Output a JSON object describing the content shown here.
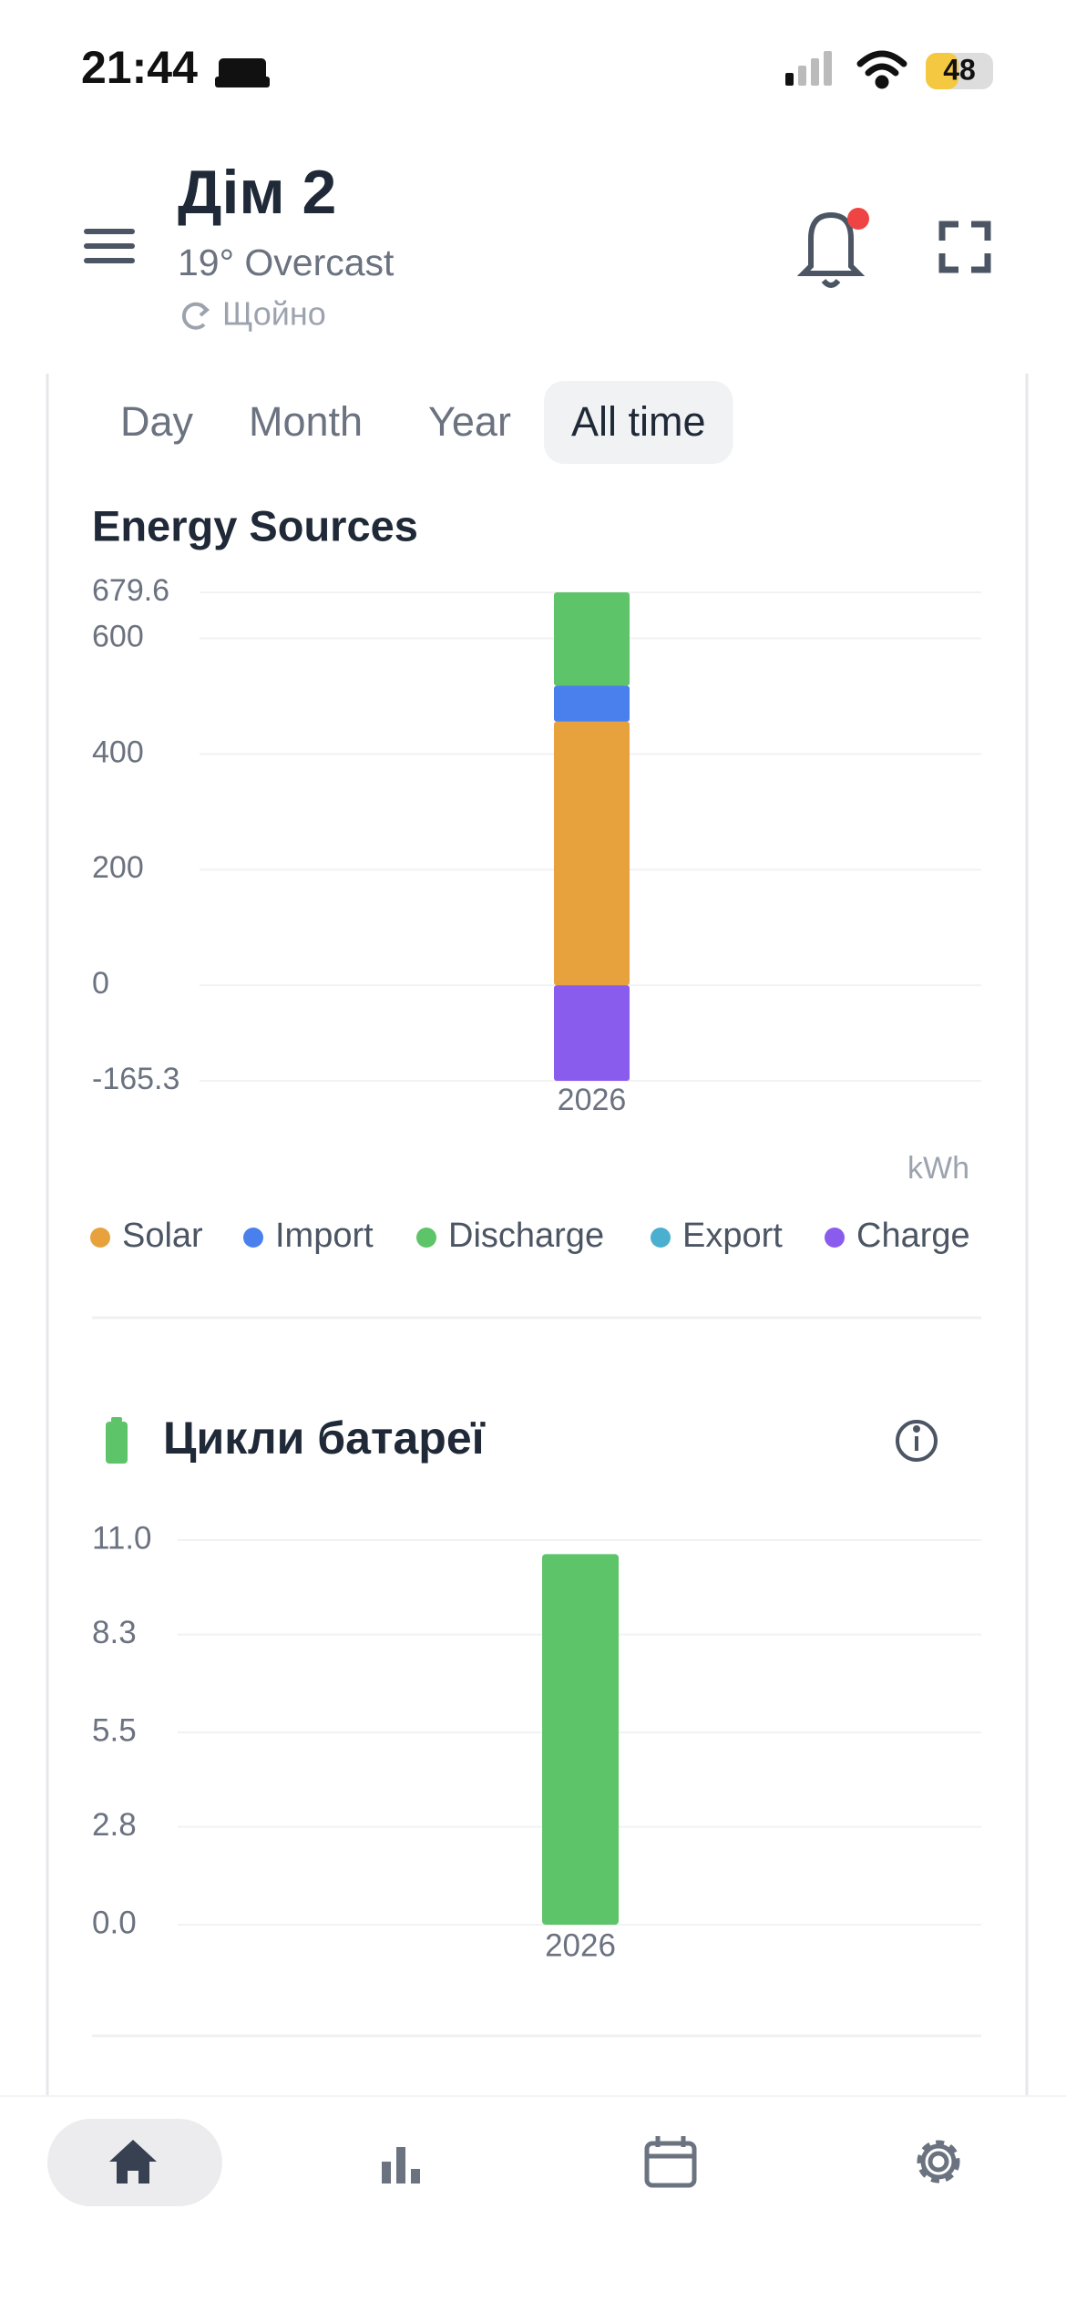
{
  "status_bar": {
    "time": "21:44",
    "battery": "48"
  },
  "header": {
    "title": "Дім 2",
    "subtitle": "19° Overcast",
    "updated": "Щойно"
  },
  "tabs": {
    "items": [
      "Day",
      "Month",
      "Year",
      "All time"
    ],
    "active": 3
  },
  "chart_data": [
    {
      "type": "bar",
      "title": "Energy Sources",
      "unit": "kWh",
      "categories": [
        "2026"
      ],
      "series": [
        {
          "name": "Solar",
          "color": "#e8a23d",
          "values": [
            456
          ]
        },
        {
          "name": "Import",
          "color": "#4a80ee",
          "values": [
            62
          ]
        },
        {
          "name": "Discharge",
          "color": "#5ec46a",
          "values": [
            161.6
          ]
        },
        {
          "name": "Export",
          "color": "#4bb0d0",
          "values": [
            0
          ]
        },
        {
          "name": "Charge",
          "color": "#8a5cee",
          "values": [
            -165.3
          ]
        }
      ],
      "ylim": [
        -165.3,
        679.6
      ],
      "yticks": [
        679.6,
        600,
        400,
        200,
        0,
        -165.3
      ],
      "grid": true
    },
    {
      "type": "bar",
      "title": "Цикли батареї",
      "categories": [
        "2026"
      ],
      "values": [
        10.6
      ],
      "color": "#5ec46a",
      "ylim": [
        0,
        11
      ],
      "yticks": [
        {
          "value": 0,
          "label": "0.0"
        },
        {
          "value": 2.8,
          "label": "2.8"
        },
        {
          "value": 5.5,
          "label": "5.5"
        },
        {
          "value": 8.3,
          "label": "8.3"
        },
        {
          "value": 11,
          "label": "11.0"
        }
      ],
      "grid": true
    }
  ]
}
